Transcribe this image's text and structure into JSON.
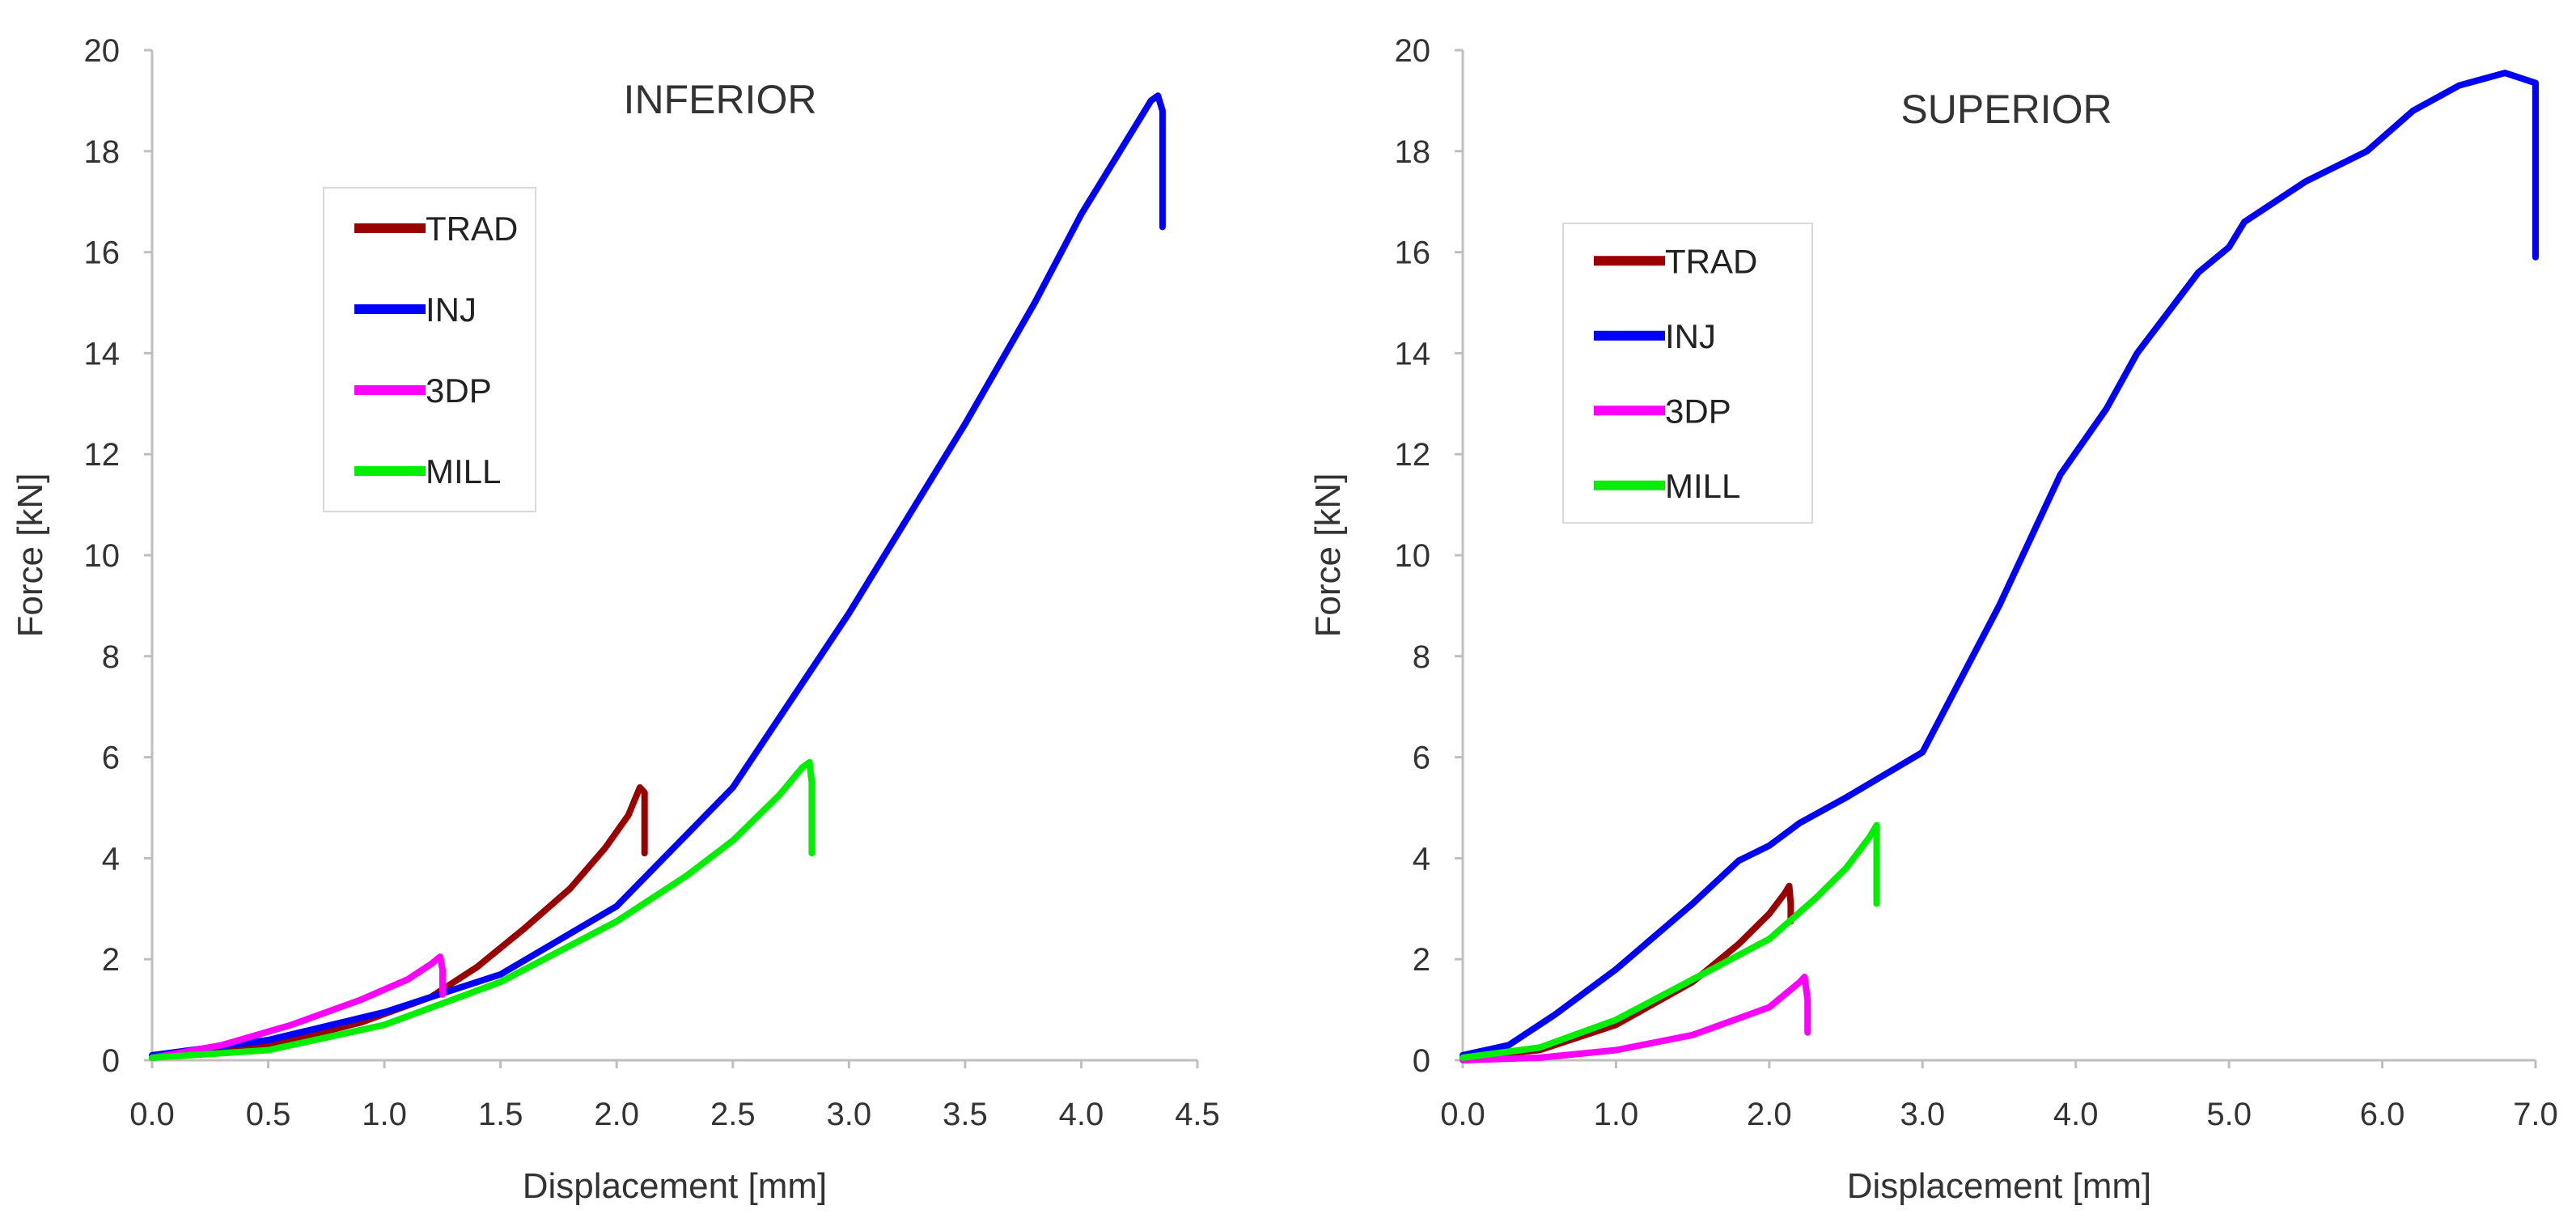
{
  "chart_data": [
    {
      "type": "line",
      "title": "INFERIOR",
      "xlabel": "Displacement [mm]",
      "ylabel": "Force [kN]",
      "xlim": [
        0,
        4.5
      ],
      "ylim": [
        0,
        20
      ],
      "xticks": [
        "0.0",
        "0.5",
        "1.0",
        "1.5",
        "2.0",
        "2.5",
        "3.0",
        "3.5",
        "4.0",
        "4.5"
      ],
      "yticks": [
        "0",
        "2",
        "4",
        "6",
        "8",
        "10",
        "12",
        "14",
        "16",
        "18",
        "20"
      ],
      "legend_position": "upper-left",
      "series": [
        {
          "name": "TRAD",
          "color": "#990000",
          "points": [
            [
              0,
              0.05
            ],
            [
              0.3,
              0.18
            ],
            [
              0.6,
              0.4
            ],
            [
              0.9,
              0.75
            ],
            [
              1.2,
              1.25
            ],
            [
              1.4,
              1.85
            ],
            [
              1.6,
              2.6
            ],
            [
              1.8,
              3.4
            ],
            [
              1.95,
              4.2
            ],
            [
              2.05,
              4.85
            ],
            [
              2.1,
              5.4
            ],
            [
              2.12,
              5.3
            ],
            [
              2.12,
              4.5
            ],
            [
              2.12,
              4.1
            ]
          ]
        },
        {
          "name": "INJ",
          "color": "#0000ff",
          "points": [
            [
              0,
              0.1
            ],
            [
              0.5,
              0.4
            ],
            [
              1.0,
              0.95
            ],
            [
              1.5,
              1.7
            ],
            [
              2.0,
              3.05
            ],
            [
              2.5,
              5.4
            ],
            [
              3.0,
              8.85
            ],
            [
              3.5,
              12.6
            ],
            [
              3.8,
              15.0
            ],
            [
              4.0,
              16.75
            ],
            [
              4.2,
              18.25
            ],
            [
              4.3,
              19.0
            ],
            [
              4.33,
              19.1
            ],
            [
              4.35,
              18.8
            ],
            [
              4.35,
              17.5
            ],
            [
              4.35,
              16.5
            ]
          ]
        },
        {
          "name": "3DP",
          "color": "#ff00ff",
          "points": [
            [
              0,
              0.05
            ],
            [
              0.3,
              0.3
            ],
            [
              0.6,
              0.7
            ],
            [
              0.9,
              1.2
            ],
            [
              1.1,
              1.6
            ],
            [
              1.2,
              1.9
            ],
            [
              1.24,
              2.05
            ],
            [
              1.25,
              1.8
            ],
            [
              1.25,
              1.55
            ],
            [
              1.25,
              1.3
            ]
          ]
        },
        {
          "name": "MILL",
          "color": "#00ee00",
          "points": [
            [
              0,
              0.05
            ],
            [
              0.5,
              0.2
            ],
            [
              1.0,
              0.7
            ],
            [
              1.5,
              1.55
            ],
            [
              2.0,
              2.75
            ],
            [
              2.3,
              3.65
            ],
            [
              2.5,
              4.35
            ],
            [
              2.7,
              5.25
            ],
            [
              2.8,
              5.8
            ],
            [
              2.83,
              5.9
            ],
            [
              2.84,
              5.5
            ],
            [
              2.84,
              4.8
            ],
            [
              2.84,
              4.1
            ]
          ]
        }
      ]
    },
    {
      "type": "line",
      "title": "SUPERIOR",
      "xlabel": "Displacement [mm]",
      "ylabel": "Force [kN]",
      "xlim": [
        0,
        7.0
      ],
      "ylim": [
        0,
        20
      ],
      "xticks": [
        "0.0",
        "1.0",
        "2.0",
        "3.0",
        "4.0",
        "5.0",
        "6.0",
        "7.0"
      ],
      "yticks": [
        "0",
        "2",
        "4",
        "6",
        "8",
        "10",
        "12",
        "14",
        "16",
        "18",
        "20"
      ],
      "legend_position": "upper-left",
      "series": [
        {
          "name": "TRAD",
          "color": "#990000",
          "points": [
            [
              0,
              0.05
            ],
            [
              0.5,
              0.2
            ],
            [
              1.0,
              0.7
            ],
            [
              1.5,
              1.55
            ],
            [
              1.8,
              2.3
            ],
            [
              2.0,
              2.9
            ],
            [
              2.1,
              3.3
            ],
            [
              2.13,
              3.45
            ],
            [
              2.14,
              3.1
            ],
            [
              2.14,
              2.75
            ]
          ]
        },
        {
          "name": "INJ",
          "color": "#0000ff",
          "points": [
            [
              0,
              0.1
            ],
            [
              0.3,
              0.3
            ],
            [
              0.6,
              0.9
            ],
            [
              1.0,
              1.8
            ],
            [
              1.5,
              3.1
            ],
            [
              1.8,
              3.95
            ],
            [
              2.0,
              4.25
            ],
            [
              2.2,
              4.7
            ],
            [
              2.5,
              5.2
            ],
            [
              3.0,
              6.1
            ],
            [
              3.5,
              9.0
            ],
            [
              3.9,
              11.6
            ],
            [
              4.2,
              12.9
            ],
            [
              4.4,
              14.0
            ],
            [
              4.8,
              15.6
            ],
            [
              5.0,
              16.1
            ],
            [
              5.1,
              16.6
            ],
            [
              5.5,
              17.4
            ],
            [
              5.9,
              18.0
            ],
            [
              6.2,
              18.8
            ],
            [
              6.5,
              19.3
            ],
            [
              6.8,
              19.55
            ],
            [
              7.0,
              19.35
            ],
            [
              7.0,
              18.0
            ],
            [
              7.0,
              15.9
            ]
          ]
        },
        {
          "name": "3DP",
          "color": "#ff00ff",
          "points": [
            [
              0,
              0.0
            ],
            [
              0.5,
              0.05
            ],
            [
              1.0,
              0.2
            ],
            [
              1.5,
              0.5
            ],
            [
              2.0,
              1.05
            ],
            [
              2.2,
              1.55
            ],
            [
              2.23,
              1.65
            ],
            [
              2.25,
              1.2
            ],
            [
              2.25,
              0.85
            ],
            [
              2.25,
              0.55
            ]
          ]
        },
        {
          "name": "MILL",
          "color": "#00ee00",
          "points": [
            [
              0,
              0.05
            ],
            [
              0.5,
              0.25
            ],
            [
              1.0,
              0.8
            ],
            [
              1.5,
              1.6
            ],
            [
              2.0,
              2.4
            ],
            [
              2.3,
              3.2
            ],
            [
              2.5,
              3.8
            ],
            [
              2.65,
              4.4
            ],
            [
              2.7,
              4.65
            ],
            [
              2.7,
              4.0
            ],
            [
              2.7,
              3.1
            ]
          ]
        }
      ]
    }
  ]
}
